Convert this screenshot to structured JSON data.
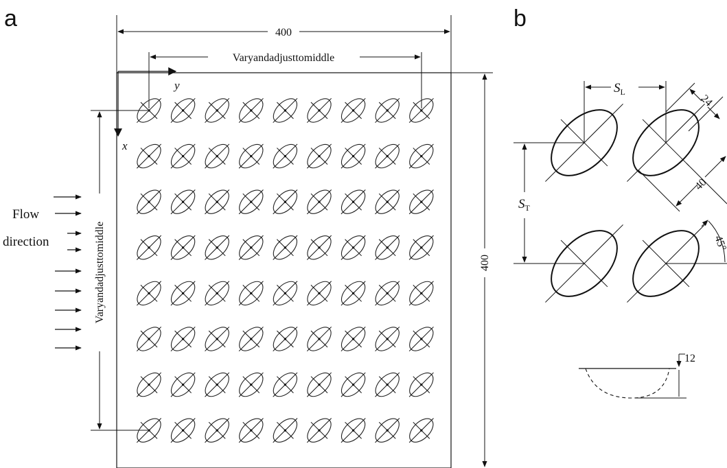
{
  "panels": {
    "a": "a",
    "b": "b"
  },
  "panel_a": {
    "plate_width_label": "400",
    "plate_height_label": "400",
    "pitch_x_label": "Varyandadjusttomiddle",
    "pitch_y_label": "Varyandadjusttomiddle",
    "axis_y_label": "y",
    "axis_x_label": "x",
    "flow_word_1": "Flow",
    "flow_word_2": "direction",
    "dimple_grid": {
      "rows": 8,
      "cols": 9,
      "orientation_deg": 45
    }
  },
  "panel_b": {
    "sl_main": "S",
    "sl_sub": "L",
    "st_main": "S",
    "st_sub": "T",
    "minor_axis_label": "24",
    "major_axis_label": "40",
    "angle_label": "45°",
    "depth_label": "12"
  },
  "colors": {
    "stroke": "#111111",
    "background": "#ffffff"
  }
}
